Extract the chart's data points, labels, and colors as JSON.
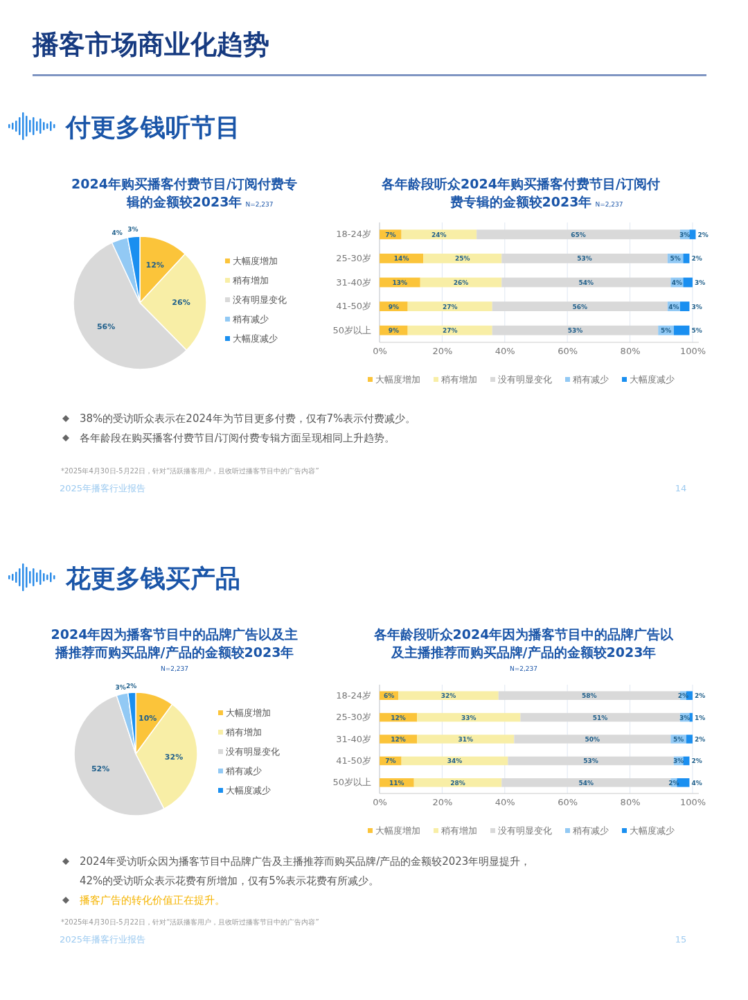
{
  "chart_data": [
    {
      "type": "pie",
      "title": "2024年购买播客付费节目/订阅付费专辑的金额较2023年",
      "subtitle": "N=2,237",
      "annotations": [
        "播客市场商业化趋势",
        "付更多钱听节目"
      ],
      "categories": [
        "大幅度增加",
        "稍有增加",
        "没有明显变化",
        "稍有减少",
        "大幅度减少"
      ],
      "values": [
        12,
        26,
        56,
        4,
        3
      ],
      "value_labels": [
        "12%",
        "26%",
        "56%",
        "4%",
        "3%"
      ],
      "colors": [
        "#fbc43a",
        "#f8eea6",
        "#d9d9d9",
        "#92c9f4",
        "#1a8ff0"
      ],
      "legend": "right"
    },
    {
      "type": "bar",
      "orientation": "horizontal",
      "stacked": true,
      "title": "各年龄段听众2024年购买播客付费节目/订阅付费专辑的金额较2023年",
      "subtitle": "N=2,237",
      "annotations": [
        "38%的受访听众表示在2024年为节目更多付费，仅有7%表示付费减少。",
        "各年龄段在购买播客付费节目/订阅付费专辑方面呈现相同上升趋势。",
        "*2025年4月30日-5月22日，针对“活跃播客用户，且收听过播客节目中的广告内容”",
        "2025年播客行业报告",
        "14"
      ],
      "categories": [
        "18-24岁",
        "25-30岁",
        "31-40岁",
        "41-50岁",
        "50岁以上"
      ],
      "series": [
        {
          "name": "大幅度增加",
          "color": "#fbc43a",
          "values": [
            7,
            14,
            13,
            9,
            9
          ],
          "value_labels": [
            "7%",
            "14%",
            "13%",
            "9%",
            "9%"
          ]
        },
        {
          "name": "稍有增加",
          "color": "#f8eea6",
          "values": [
            24,
            25,
            26,
            27,
            27
          ],
          "value_labels": [
            "24%",
            "25%",
            "26%",
            "27%",
            "27%"
          ]
        },
        {
          "name": "没有明显变化",
          "color": "#d9d9d9",
          "values": [
            65,
            53,
            54,
            56,
            53
          ],
          "value_labels": [
            "65%",
            "53%",
            "54%",
            "56%",
            "53%"
          ]
        },
        {
          "name": "稍有减少",
          "color": "#92c9f4",
          "values": [
            3,
            5,
            4,
            4,
            5
          ],
          "value_labels": [
            "3%",
            "5%",
            "4%",
            "4%",
            "5%"
          ]
        },
        {
          "name": "大幅度减少",
          "color": "#1a8ff0",
          "values": [
            2,
            2,
            3,
            3,
            5
          ],
          "value_labels": [
            "2%",
            "2%",
            "3%",
            "3%",
            "5%"
          ]
        }
      ],
      "xlim": [
        0,
        102
      ],
      "xticks": [
        {
          "value": 0,
          "label": "0%"
        },
        {
          "value": 20,
          "label": "20%"
        },
        {
          "value": 40,
          "label": "40%"
        },
        {
          "value": 60,
          "label": "60%"
        },
        {
          "value": 80,
          "label": "80%"
        },
        {
          "value": 100,
          "label": "100%"
        }
      ],
      "grid": "x",
      "legend": "bottom"
    },
    {
      "type": "pie",
      "title": "2024年因为播客节目中的品牌广告以及主播推荐而购买品牌/产品的金额较2023年",
      "subtitle": "N=2,237",
      "annotations": [
        "花更多钱买产品"
      ],
      "categories": [
        "大幅度增加",
        "稍有增加",
        "没有明显变化",
        "稍有减少",
        "大幅度减少"
      ],
      "values": [
        10,
        32,
        52,
        3,
        2
      ],
      "value_labels": [
        "10%",
        "32%",
        "52%",
        "3%",
        "2%"
      ],
      "colors": [
        "#fbc43a",
        "#f8eea6",
        "#d9d9d9",
        "#92c9f4",
        "#1a8ff0"
      ],
      "legend": "right"
    },
    {
      "type": "bar",
      "orientation": "horizontal",
      "stacked": true,
      "title": "各年龄段听众2024年因为播客节目中的品牌广告以及主播推荐而购买品牌/产品的金额较2023年",
      "subtitle": "N=2,237",
      "annotations": [
        "2024年受访听众因为播客节目中品牌广告及主播推荐而购买品牌/产品的金额较2023年明显提升，42%的受访听众表示花费有所增加，仅有5%表示花费有所减少。",
        "播客广告的转化价值正在提升。",
        "*2025年4月30日-5月22日，针对“活跃播客用户，且收听过播客节目中的广告内容”",
        "2025年播客行业报告",
        "15"
      ],
      "categories": [
        "18-24岁",
        "25-30岁",
        "31-40岁",
        "41-50岁",
        "50岁以上"
      ],
      "series": [
        {
          "name": "大幅度增加",
          "color": "#fbc43a",
          "values": [
            6,
            12,
            12,
            7,
            11
          ],
          "value_labels": [
            "6%",
            "12%",
            "12%",
            "7%",
            "11%"
          ]
        },
        {
          "name": "稍有增加",
          "color": "#f8eea6",
          "values": [
            32,
            33,
            31,
            34,
            28
          ],
          "value_labels": [
            "32%",
            "33%",
            "31%",
            "34%",
            "28%"
          ]
        },
        {
          "name": "没有明显变化",
          "color": "#d9d9d9",
          "values": [
            58,
            51,
            50,
            53,
            54
          ],
          "value_labels": [
            "58%",
            "51%",
            "50%",
            "53%",
            "54%"
          ]
        },
        {
          "name": "稍有减少",
          "color": "#92c9f4",
          "values": [
            2,
            3,
            5,
            3,
            2
          ],
          "value_labels": [
            "2%",
            "3%",
            "5%",
            "3%",
            "2%"
          ]
        },
        {
          "name": "大幅度减少",
          "color": "#1a8ff0",
          "values": [
            2,
            1,
            2,
            2,
            4
          ],
          "value_labels": [
            "2%",
            "1%",
            "2%",
            "2%",
            "4%"
          ]
        }
      ],
      "xlim": [
        0,
        102
      ],
      "xticks": [
        {
          "value": 0,
          "label": "0%"
        },
        {
          "value": 20,
          "label": "20%"
        },
        {
          "value": 40,
          "label": "40%"
        },
        {
          "value": 60,
          "label": "60%"
        },
        {
          "value": 80,
          "label": "80%"
        },
        {
          "value": 100,
          "label": "100%"
        }
      ],
      "grid": "x",
      "legend": "bottom"
    }
  ]
}
